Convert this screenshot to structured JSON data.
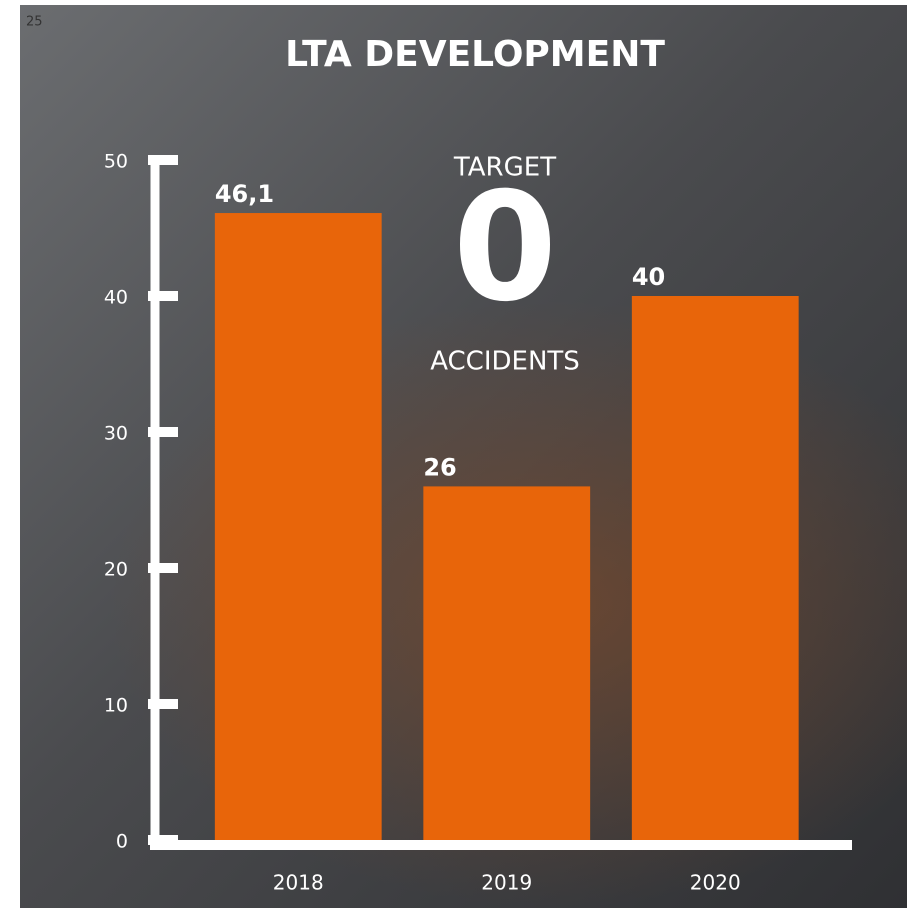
{
  "page_number": "25",
  "chart_data": {
    "type": "bar",
    "title": "LTA DEVELOPMENT",
    "annotations": [
      "TARGET",
      "0",
      "ACCIDENTS"
    ],
    "categories": [
      "2018",
      "2019",
      "2020"
    ],
    "values": [
      46.1,
      26,
      40
    ],
    "value_labels": [
      "46,1",
      "26",
      "40"
    ],
    "color": "#e8650a",
    "ylim": [
      0,
      50
    ],
    "yticks": [
      0,
      10,
      20,
      30,
      40,
      50
    ]
  }
}
